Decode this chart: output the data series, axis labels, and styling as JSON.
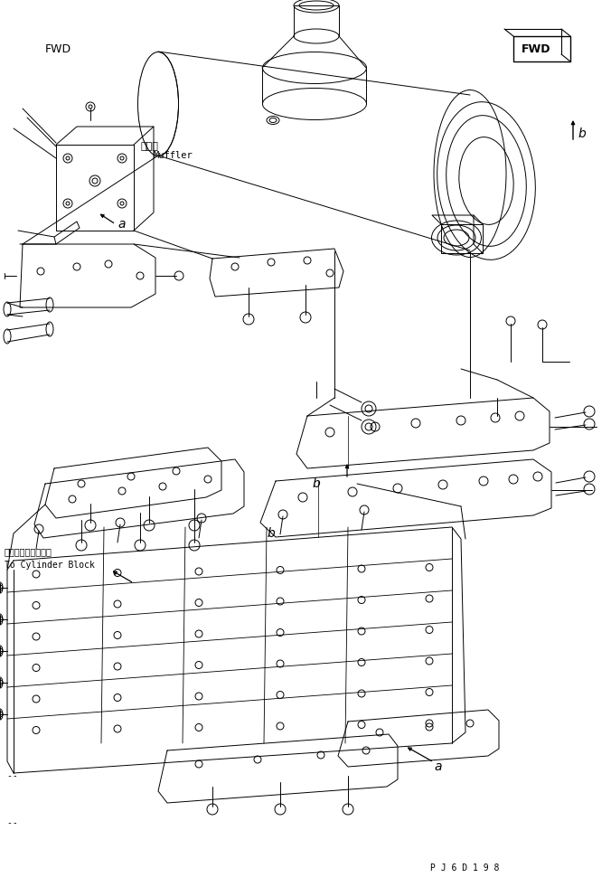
{
  "bg_color": "#ffffff",
  "line_color": "#000000",
  "fig_width": 6.76,
  "fig_height": 9.81,
  "dpi": 100,
  "watermark": "P J 6 D 1 9 8",
  "muffler_jp": "マフラ",
  "muffler_en": "Muffler",
  "fwd_label": "FWD",
  "cylinder_jp": "シリンダブロックへ",
  "cylinder_en": "To Cylinder Block"
}
